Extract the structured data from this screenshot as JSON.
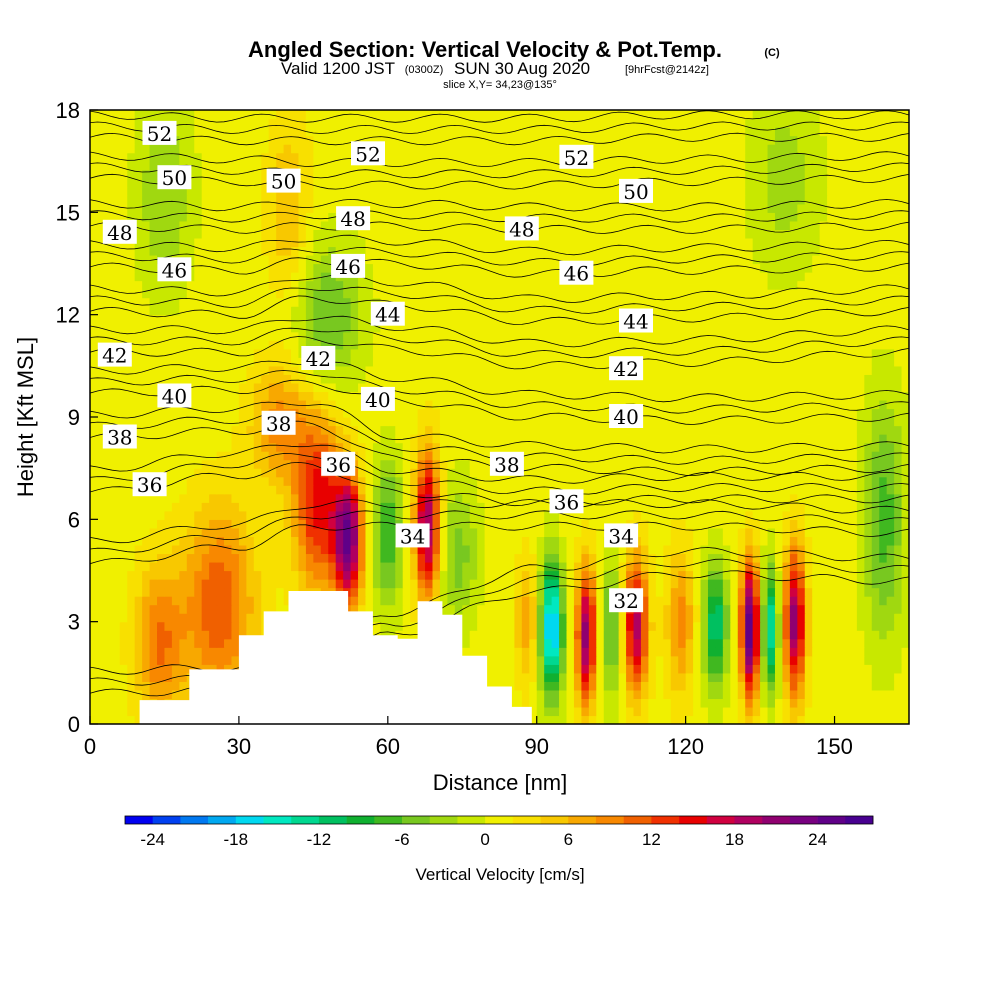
{
  "chart_data": {
    "type": "heatmap",
    "title": "Angled Section: Vertical Velocity & Pot.Temp.",
    "title_unit": "(C)",
    "subtitle_valid": "Valid 1200 JST",
    "subtitle_z": "(0300Z)",
    "subtitle_date": "SUN 30 Aug 2020",
    "subtitle_fcst": "[9hrFcst@2142z]",
    "slice_label": "slice X,Y= 34,23@135°",
    "xlabel": "Distance [nm]",
    "ylabel": "Height [Kft MSL]",
    "xlim": [
      0,
      165
    ],
    "ylim": [
      0,
      18
    ],
    "x_ticks": [
      "0",
      "30",
      "60",
      "90",
      "120",
      "150"
    ],
    "y_ticks": [
      "0",
      "3",
      "6",
      "9",
      "12",
      "15",
      "18"
    ],
    "colorbar": {
      "title": "Vertical Velocity [cm/s]",
      "tick_labels": [
        "-24",
        "-18",
        "-12",
        "-6",
        "0",
        "6",
        "12",
        "18",
        "24"
      ],
      "min": -26,
      "max": 28,
      "step": 2,
      "colors": [
        "#0000f0",
        "#0040f0",
        "#0078f0",
        "#00a8f0",
        "#00d8f0",
        "#00e8c0",
        "#00d890",
        "#00c060",
        "#10b030",
        "#40b820",
        "#78c820",
        "#a0d810",
        "#c8e800",
        "#f0f000",
        "#f8e000",
        "#f8c800",
        "#f8a800",
        "#f88800",
        "#f06000",
        "#f03000",
        "#e80000",
        "#d00040",
        "#b00060",
        "#900070",
        "#780080",
        "#600088",
        "#480090"
      ]
    },
    "theta_contours": [
      {
        "label": "32",
        "h": [
          0.9,
          1.0,
          1.4,
          2.6,
          3.9,
          4.4,
          4.2
        ]
      },
      {
        "label": "34",
        "h": [
          4.7,
          5.2,
          5.8,
          5.8,
          5.8,
          5.8,
          5.6
        ]
      },
      {
        "label": "36",
        "h": [
          6.8,
          7.3,
          7.6,
          6.8,
          6.5,
          6.6,
          6.6
        ]
      },
      {
        "label": "38",
        "h": [
          8.4,
          8.6,
          8.8,
          7.8,
          7.5,
          7.4,
          7.5
        ]
      },
      {
        "label": "40",
        "h": [
          9.7,
          9.8,
          10.0,
          9.5,
          9.0,
          8.9,
          9.0
        ]
      },
      {
        "label": "42",
        "h": [
          10.9,
          10.9,
          11.3,
          11.0,
          10.5,
          10.6,
          10.9
        ]
      },
      {
        "label": "44",
        "h": [
          12.1,
          12.0,
          12.5,
          12.3,
          11.8,
          11.9,
          12.1
        ]
      },
      {
        "label": "46",
        "h": [
          13.4,
          13.3,
          13.6,
          13.5,
          13.2,
          13.3,
          13.4
        ]
      },
      {
        "label": "48",
        "h": [
          14.6,
          14.5,
          14.6,
          14.6,
          14.5,
          14.5,
          14.6
        ]
      },
      {
        "label": "50",
        "h": [
          16.0,
          15.9,
          15.8,
          15.8,
          15.8,
          15.9,
          16.0
        ]
      },
      {
        "label": "52",
        "h": [
          17.2,
          17.1,
          17.1,
          17.1,
          17.1,
          17.2,
          17.2
        ]
      }
    ],
    "contour_x": [
      0,
      30,
      45,
      60,
      90,
      120,
      165
    ],
    "contour_labels": [
      {
        "text": "52",
        "x": 14,
        "y": 17.3
      },
      {
        "text": "52",
        "x": 56,
        "y": 16.7
      },
      {
        "text": "52",
        "x": 98,
        "y": 16.6
      },
      {
        "text": "50",
        "x": 17,
        "y": 16.0
      },
      {
        "text": "50",
        "x": 39,
        "y": 15.9
      },
      {
        "text": "50",
        "x": 110,
        "y": 15.6
      },
      {
        "text": "48",
        "x": 6,
        "y": 14.4
      },
      {
        "text": "48",
        "x": 53,
        "y": 14.8
      },
      {
        "text": "48",
        "x": 87,
        "y": 14.5
      },
      {
        "text": "46",
        "x": 17,
        "y": 13.3
      },
      {
        "text": "46",
        "x": 52,
        "y": 13.4
      },
      {
        "text": "46",
        "x": 98,
        "y": 13.2
      },
      {
        "text": "44",
        "x": 60,
        "y": 12.0
      },
      {
        "text": "44",
        "x": 110,
        "y": 11.8
      },
      {
        "text": "42",
        "x": 5,
        "y": 10.8
      },
      {
        "text": "42",
        "x": 46,
        "y": 10.7
      },
      {
        "text": "42",
        "x": 108,
        "y": 10.4
      },
      {
        "text": "40",
        "x": 17,
        "y": 9.6
      },
      {
        "text": "40",
        "x": 58,
        "y": 9.5
      },
      {
        "text": "40",
        "x": 108,
        "y": 9.0
      },
      {
        "text": "38",
        "x": 6,
        "y": 8.4
      },
      {
        "text": "38",
        "x": 38,
        "y": 8.8
      },
      {
        "text": "38",
        "x": 84,
        "y": 7.6
      },
      {
        "text": "36",
        "x": 12,
        "y": 7.0
      },
      {
        "text": "36",
        "x": 50,
        "y": 7.6
      },
      {
        "text": "36",
        "x": 96,
        "y": 6.5
      },
      {
        "text": "34",
        "x": 65,
        "y": 5.5
      },
      {
        "text": "34",
        "x": 107,
        "y": 5.5
      },
      {
        "text": "32",
        "x": 108,
        "y": 3.6
      }
    ],
    "terrain": [
      {
        "x": 0,
        "h": 0
      },
      {
        "x": 10,
        "h": 0.7
      },
      {
        "x": 20,
        "h": 1.6
      },
      {
        "x": 30,
        "h": 2.6
      },
      {
        "x": 35,
        "h": 3.3
      },
      {
        "x": 40,
        "h": 3.9
      },
      {
        "x": 47,
        "h": 3.9
      },
      {
        "x": 52,
        "h": 3.3
      },
      {
        "x": 57,
        "h": 2.6
      },
      {
        "x": 62,
        "h": 2.5
      },
      {
        "x": 66,
        "h": 3.6
      },
      {
        "x": 71,
        "h": 3.2
      },
      {
        "x": 75,
        "h": 2.0
      },
      {
        "x": 80,
        "h": 1.1
      },
      {
        "x": 85,
        "h": 0.5
      },
      {
        "x": 89,
        "h": 0
      }
    ],
    "w_features": [
      {
        "x": 14,
        "h": 2.4,
        "sx": 3.5,
        "sh": 1.6,
        "w": 9
      },
      {
        "x": 26,
        "h": 3.5,
        "sx": 5.0,
        "sh": 2.0,
        "w": 11
      },
      {
        "x": 38,
        "h": 8.8,
        "sx": 4.0,
        "sh": 1.2,
        "w": 8
      },
      {
        "x": 46,
        "h": 6.5,
        "sx": 3.5,
        "sh": 1.8,
        "w": 14
      },
      {
        "x": 52,
        "h": 5.4,
        "sx": 2.0,
        "sh": 1.3,
        "w": 22
      },
      {
        "x": 60,
        "h": 5.6,
        "sx": 2.2,
        "sh": 1.5,
        "w": -9
      },
      {
        "x": 68,
        "h": 5.8,
        "sx": 1.8,
        "sh": 1.5,
        "w": 20
      },
      {
        "x": 74,
        "h": 5.0,
        "sx": 3.0,
        "sh": 1.5,
        "w": -6
      },
      {
        "x": 88,
        "h": 3.0,
        "sx": 1.7,
        "sh": 1.3,
        "w": 6
      },
      {
        "x": 93,
        "h": 2.8,
        "sx": 1.6,
        "sh": 1.4,
        "w": -20
      },
      {
        "x": 100,
        "h": 2.6,
        "sx": 1.4,
        "sh": 1.4,
        "w": 20
      },
      {
        "x": 105,
        "h": 2.8,
        "sx": 1.6,
        "sh": 1.4,
        "w": -8
      },
      {
        "x": 110,
        "h": 2.9,
        "sx": 1.7,
        "sh": 1.4,
        "w": 18
      },
      {
        "x": 119,
        "h": 3.0,
        "sx": 2.0,
        "sh": 1.5,
        "w": 8
      },
      {
        "x": 126,
        "h": 2.9,
        "sx": 1.7,
        "sh": 1.3,
        "w": -13
      },
      {
        "x": 133,
        "h": 2.8,
        "sx": 1.3,
        "sh": 1.4,
        "w": 25
      },
      {
        "x": 137,
        "h": 2.8,
        "sx": 1.2,
        "sh": 1.3,
        "w": -15
      },
      {
        "x": 142,
        "h": 3.0,
        "sx": 1.5,
        "sh": 1.5,
        "w": 20
      },
      {
        "x": 48,
        "h": 12.0,
        "sx": 5.0,
        "sh": 1.5,
        "w": -7
      },
      {
        "x": 40,
        "h": 15.0,
        "sx": 3.0,
        "sh": 2.0,
        "w": 5
      },
      {
        "x": 15,
        "h": 15.5,
        "sx": 4.0,
        "sh": 2.0,
        "w": -5
      },
      {
        "x": 160,
        "h": 6.0,
        "sx": 3.0,
        "sh": 2.5,
        "w": -8
      },
      {
        "x": 140,
        "h": 16.0,
        "sx": 5.0,
        "sh": 2.0,
        "w": -4
      }
    ]
  }
}
